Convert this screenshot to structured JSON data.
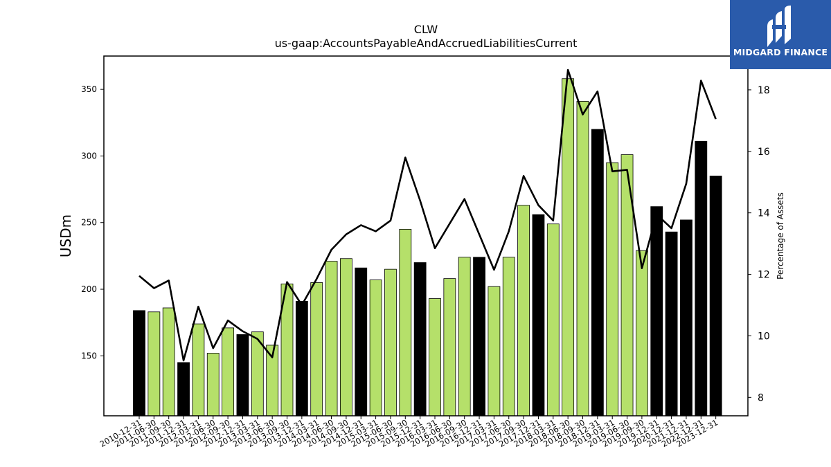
{
  "chart_data": {
    "type": "bar",
    "title": "CLW",
    "subtitle": "us-gaap:AccountsPayableAndAccruedLiabilitiesCurrent",
    "ylabel": "USDm",
    "y2label": "Percentage of Assets",
    "ylim": [
      105,
      375
    ],
    "y2lim": [
      7.4,
      19.1
    ],
    "yticks": [
      150,
      200,
      250,
      300,
      350
    ],
    "y2ticks": [
      8,
      10,
      12,
      14,
      16,
      18
    ],
    "categories": [
      "2010-12-31",
      "2011-06-30",
      "2011-09-30",
      "2011-12-31",
      "2012-03-31",
      "2012-06-30",
      "2012-09-30",
      "2012-12-31",
      "2013-03-31",
      "2013-06-30",
      "2013-09-30",
      "2013-12-31",
      "2014-03-31",
      "2014-06-30",
      "2014-09-30",
      "2014-12-31",
      "2015-03-31",
      "2015-06-30",
      "2015-09-30",
      "2015-12-31",
      "2016-03-31",
      "2016-06-30",
      "2016-09-30",
      "2016-12-31",
      "2017-03-31",
      "2017-06-30",
      "2017-09-30",
      "2017-12-31",
      "2018-03-31",
      "2018-06-30",
      "2018-09-30",
      "2018-12-31",
      "2019-03-31",
      "2019-06-30",
      "2019-09-30",
      "2019-12-31",
      "2020-12-31",
      "2021-12-31",
      "2022-12-31",
      "2023-12-31"
    ],
    "series": [
      {
        "type": "bar",
        "values": [
          184,
          183,
          186,
          145,
          174,
          152,
          171,
          166,
          168,
          158,
          204,
          191,
          205,
          221,
          223,
          216,
          207,
          215,
          245,
          220,
          193,
          208,
          224,
          224,
          202,
          224,
          263,
          256,
          249,
          358,
          341,
          320,
          295,
          301,
          229,
          262,
          243,
          252,
          311,
          285
        ],
        "colors": [
          "#000000",
          "#b5e06a",
          "#b5e06a",
          "#000000",
          "#b5e06a",
          "#b5e06a",
          "#b5e06a",
          "#000000",
          "#b5e06a",
          "#b5e06a",
          "#b5e06a",
          "#000000",
          "#b5e06a",
          "#b5e06a",
          "#b5e06a",
          "#000000",
          "#b5e06a",
          "#b5e06a",
          "#b5e06a",
          "#000000",
          "#b5e06a",
          "#b5e06a",
          "#b5e06a",
          "#000000",
          "#b5e06a",
          "#b5e06a",
          "#b5e06a",
          "#000000",
          "#b5e06a",
          "#b5e06a",
          "#b5e06a",
          "#000000",
          "#b5e06a",
          "#b5e06a",
          "#b5e06a",
          "#000000",
          "#000000",
          "#000000",
          "#000000",
          "#000000"
        ]
      },
      {
        "type": "line",
        "axis": "right",
        "color": "#000000",
        "values": [
          11.95,
          11.55,
          11.8,
          9.2,
          10.95,
          9.6,
          10.5,
          10.15,
          9.9,
          9.3,
          11.75,
          11.0,
          11.85,
          12.8,
          13.3,
          13.6,
          13.4,
          13.75,
          15.8,
          14.4,
          12.85,
          13.65,
          14.45,
          13.3,
          12.15,
          13.4,
          15.2,
          14.25,
          13.75,
          18.65,
          17.2,
          17.95,
          15.35,
          15.4,
          12.2,
          13.95,
          13.5,
          14.95,
          18.3,
          17.05
        ]
      }
    ],
    "grid": false,
    "legend": "none"
  },
  "logo": {
    "text": "MIDGARD FINANCE"
  },
  "colors": {
    "bar_green": "#b5e06a",
    "bar_black": "#000000",
    "line": "#000000",
    "logo_bg": "#2a5bab"
  }
}
